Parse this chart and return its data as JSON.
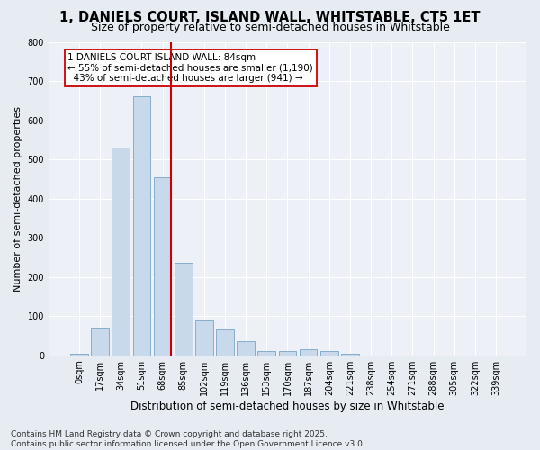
{
  "title": "1, DANIELS COURT, ISLAND WALL, WHITSTABLE, CT5 1ET",
  "subtitle": "Size of property relative to semi-detached houses in Whitstable",
  "xlabel": "Distribution of semi-detached houses by size in Whitstable",
  "ylabel": "Number of semi-detached properties",
  "categories": [
    "0sqm",
    "17sqm",
    "34sqm",
    "51sqm",
    "68sqm",
    "85sqm",
    "102sqm",
    "119sqm",
    "136sqm",
    "153sqm",
    "170sqm",
    "187sqm",
    "204sqm",
    "221sqm",
    "238sqm",
    "254sqm",
    "271sqm",
    "288sqm",
    "305sqm",
    "322sqm",
    "339sqm"
  ],
  "values": [
    5,
    70,
    530,
    660,
    455,
    235,
    90,
    65,
    35,
    10,
    10,
    15,
    10,
    5,
    0,
    0,
    0,
    0,
    0,
    0,
    0
  ],
  "bar_color": "#c9d9ec",
  "bar_edge_color": "#85aecb",
  "vline_index": 4,
  "vline_color": "#cc0000",
  "annotation_text": "1 DANIELS COURT ISLAND WALL: 84sqm\n← 55% of semi-detached houses are smaller (1,190)\n  43% of semi-detached houses are larger (941) →",
  "annotation_box_color": "#ffffff",
  "annotation_box_edge": "#cc0000",
  "footer_line1": "Contains HM Land Registry data © Crown copyright and database right 2025.",
  "footer_line2": "Contains public sector information licensed under the Open Government Licence v3.0.",
  "ylim": [
    0,
    800
  ],
  "yticks": [
    0,
    100,
    200,
    300,
    400,
    500,
    600,
    700,
    800
  ],
  "bg_color": "#e6ecf2",
  "plot_bg_color": "#edf1f7",
  "grid_color": "#ffffff",
  "title_fontsize": 10.5,
  "subtitle_fontsize": 9,
  "tick_fontsize": 7,
  "ylabel_fontsize": 8,
  "xlabel_fontsize": 8.5,
  "footer_fontsize": 6.5,
  "annot_fontsize": 7.5
}
